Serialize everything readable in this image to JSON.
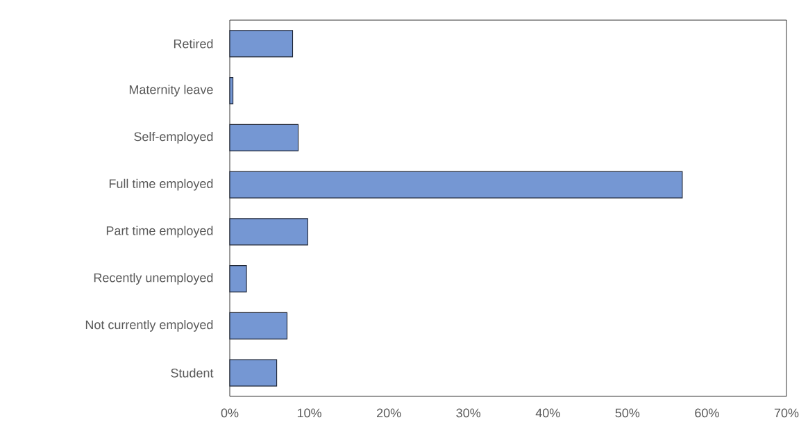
{
  "chart_data": {
    "type": "bar",
    "orientation": "horizontal",
    "categories": [
      "Retired",
      "Maternity leave",
      "Self-employed",
      "Full time employed",
      "Part time employed",
      "Recently unemployed",
      "Not currently employed",
      "Student"
    ],
    "values": [
      7.9,
      0.4,
      8.6,
      56.9,
      9.8,
      2.1,
      7.2,
      5.9
    ],
    "color": "#7597d3",
    "xlim": [
      0,
      70
    ],
    "xticks": [
      {
        "value": 0,
        "label": "0%"
      },
      {
        "value": 10,
        "label": "10%"
      },
      {
        "value": 20,
        "label": "20%"
      },
      {
        "value": 30,
        "label": "30%"
      },
      {
        "value": 40,
        "label": "40%"
      },
      {
        "value": 50,
        "label": "50%"
      },
      {
        "value": 60,
        "label": "60%"
      },
      {
        "value": 70,
        "label": "70%"
      }
    ]
  }
}
